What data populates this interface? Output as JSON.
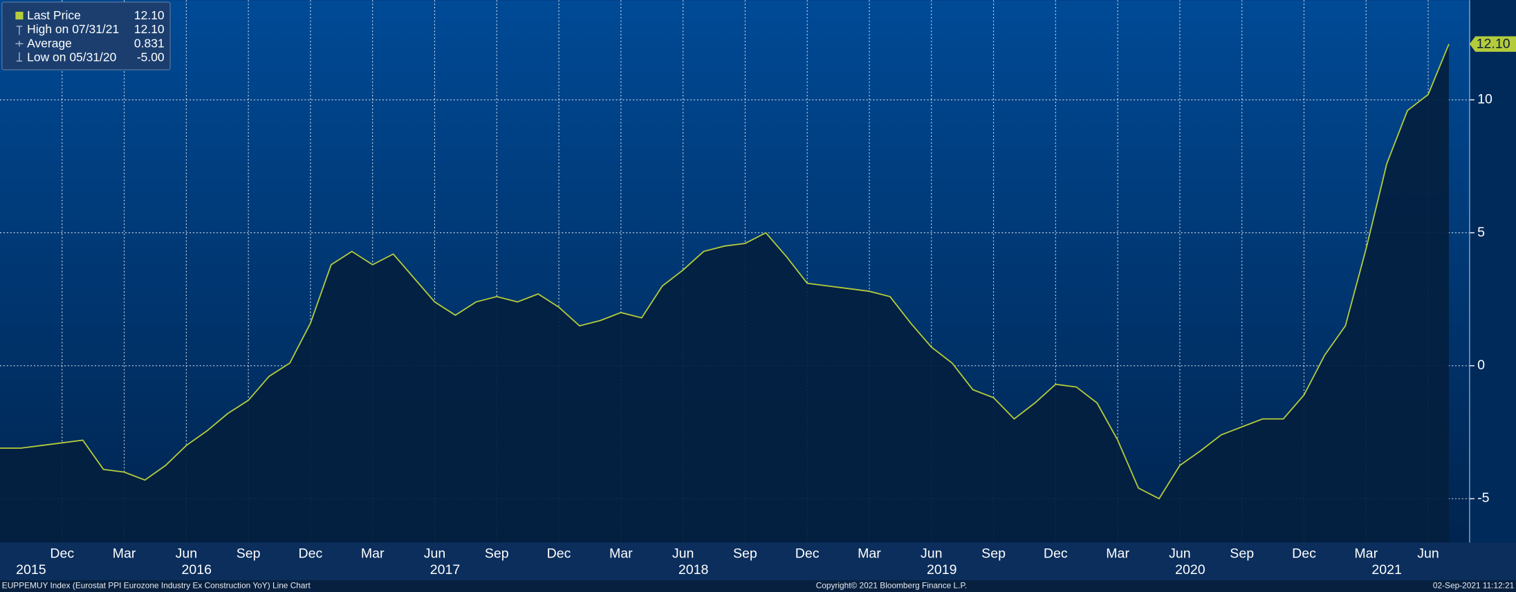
{
  "chart_data": {
    "type": "line",
    "footer_left": "EUPPEMUY Index (Eurostat PPI Eurozone Industry Ex Construction YoY) Line Chart",
    "footer_center": "Copyright© 2021 Bloomberg Finance L.P.",
    "footer_right": "02-Sep-2021 11:12:21",
    "stats": [
      {
        "name": "Last Price",
        "value": 12.1,
        "label": "12.10"
      },
      {
        "name": "High on 07/31/21",
        "value": 12.1,
        "label": "12.10"
      },
      {
        "name": "Average",
        "value": 0.831,
        "label": "0.831"
      },
      {
        "name": "Low on 05/31/20",
        "value": -5,
        "label": "-5.00"
      }
    ],
    "x": [
      "2015-09",
      "2015-10",
      "2015-11",
      "2015-12",
      "2016-01",
      "2016-02",
      "2016-03",
      "2016-04",
      "2016-05",
      "2016-06",
      "2016-07",
      "2016-08",
      "2016-09",
      "2016-10",
      "2016-11",
      "2016-12",
      "2017-01",
      "2017-02",
      "2017-03",
      "2017-04",
      "2017-05",
      "2017-06",
      "2017-07",
      "2017-08",
      "2017-09",
      "2017-10",
      "2017-11",
      "2017-12",
      "2018-01",
      "2018-02",
      "2018-03",
      "2018-04",
      "2018-05",
      "2018-06",
      "2018-07",
      "2018-08",
      "2018-09",
      "2018-10",
      "2018-11",
      "2018-12",
      "2019-01",
      "2019-02",
      "2019-03",
      "2019-04",
      "2019-05",
      "2019-06",
      "2019-07",
      "2019-08",
      "2019-09",
      "2019-10",
      "2019-11",
      "2019-12",
      "2020-01",
      "2020-02",
      "2020-03",
      "2020-04",
      "2020-05",
      "2020-06",
      "2020-07",
      "2020-08",
      "2020-09",
      "2020-10",
      "2020-11",
      "2020-12",
      "2021-01",
      "2021-02",
      "2021-03",
      "2021-04",
      "2021-05",
      "2021-06",
      "2021-07"
    ],
    "series": [
      {
        "name": "Last Price",
        "color": "#b4cc3c",
        "values": [
          -3.1,
          -3.1,
          -3.0,
          -2.9,
          -2.8,
          -3.9,
          -4.0,
          -4.3,
          -3.75,
          -3.0,
          -2.45,
          -1.8,
          -1.3,
          -0.4,
          0.1,
          1.6,
          3.8,
          4.3,
          3.8,
          4.2,
          3.3,
          2.4,
          1.9,
          2.4,
          2.6,
          2.4,
          2.7,
          2.2,
          1.5,
          1.7,
          2.0,
          1.8,
          3.0,
          3.6,
          4.3,
          4.5,
          4.6,
          5.0,
          4.1,
          3.1,
          3.0,
          2.9,
          2.8,
          2.6,
          1.6,
          0.7,
          0.1,
          -0.9,
          -1.2,
          -2.0,
          -1.4,
          -0.7,
          -0.8,
          -1.4,
          -2.8,
          -4.6,
          -5.0,
          -3.75,
          -3.2,
          -2.6,
          -2.3,
          -2.0,
          -2.0,
          -1.1,
          0.4,
          1.5,
          4.4,
          7.6,
          9.6,
          10.2,
          12.1
        ]
      }
    ],
    "xlim": [
      "2015-09",
      "2021-08"
    ],
    "xticks": [
      {
        "value": "2015-12",
        "label": "Dec"
      },
      {
        "value": "2016-03",
        "label": "Mar"
      },
      {
        "value": "2016-06",
        "label": "Jun"
      },
      {
        "value": "2016-09",
        "label": "Sep"
      },
      {
        "value": "2016-12",
        "label": "Dec"
      },
      {
        "value": "2017-03",
        "label": "Mar"
      },
      {
        "value": "2017-06",
        "label": "Jun"
      },
      {
        "value": "2017-09",
        "label": "Sep"
      },
      {
        "value": "2017-12",
        "label": "Dec"
      },
      {
        "value": "2018-03",
        "label": "Mar"
      },
      {
        "value": "2018-06",
        "label": "Jun"
      },
      {
        "value": "2018-09",
        "label": "Sep"
      },
      {
        "value": "2018-12",
        "label": "Dec"
      },
      {
        "value": "2019-03",
        "label": "Mar"
      },
      {
        "value": "2019-06",
        "label": "Jun"
      },
      {
        "value": "2019-09",
        "label": "Sep"
      },
      {
        "value": "2019-12",
        "label": "Dec"
      },
      {
        "value": "2020-03",
        "label": "Mar"
      },
      {
        "value": "2020-06",
        "label": "Jun"
      },
      {
        "value": "2020-09",
        "label": "Sep"
      },
      {
        "value": "2020-12",
        "label": "Dec"
      },
      {
        "value": "2021-03",
        "label": "Mar"
      },
      {
        "value": "2021-06",
        "label": "Jun"
      }
    ],
    "years": [
      2015,
      2016,
      2017,
      2018,
      2019,
      2020,
      2021
    ],
    "ylim": [
      -6.65,
      13.75
    ],
    "yticks": [
      -5,
      0,
      5,
      10
    ],
    "grid": true
  }
}
